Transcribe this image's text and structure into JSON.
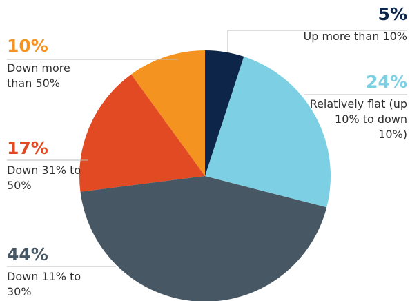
{
  "chart_data": {
    "type": "pie",
    "categories": [
      "Up more than 10%",
      "Relatively flat (up 10% to down 10%)",
      "Down 11% to 30%",
      "Down 31% to 50%",
      "Down more than 50%"
    ],
    "values": [
      5,
      24,
      44,
      17,
      10
    ],
    "value_labels": [
      "5%",
      "24%",
      "44%",
      "17%",
      "10%"
    ],
    "colors": [
      "#0d2548",
      "#7dd0e3",
      "#475764",
      "#e24a23",
      "#f4931f"
    ]
  }
}
